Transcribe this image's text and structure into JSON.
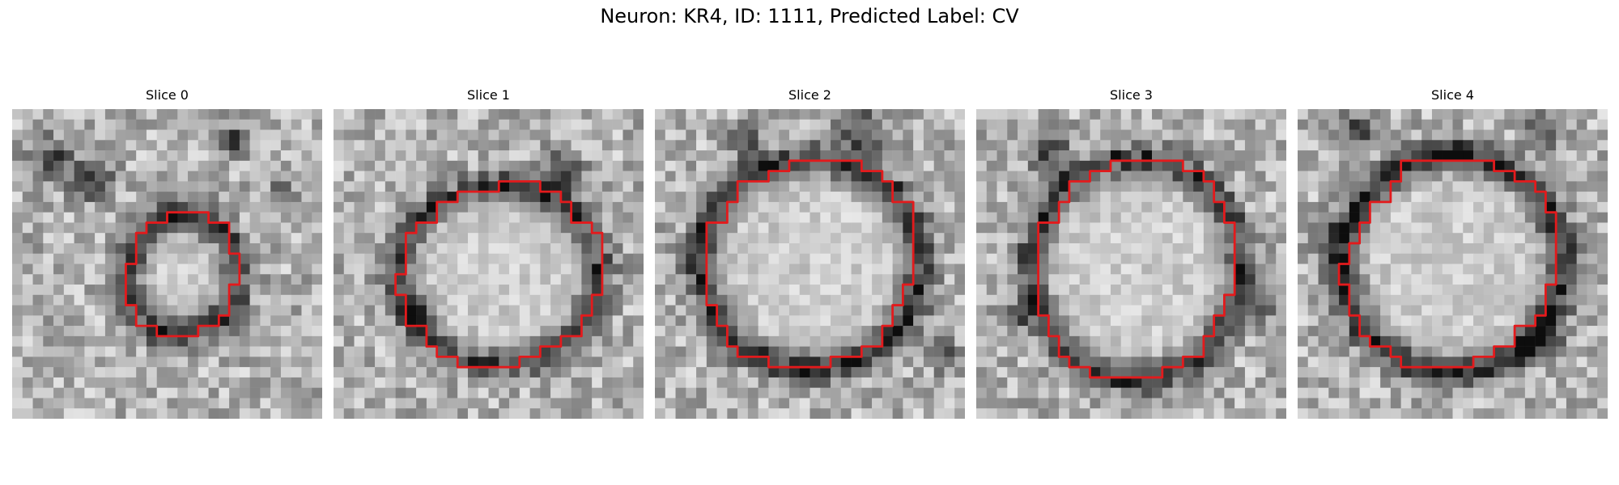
{
  "figure": {
    "title": "Neuron: KR4, ID: 1111, Predicted Label: CV"
  },
  "panels": [
    {
      "title": "Slice 0",
      "contour_color": "#e31a1c"
    },
    {
      "title": "Slice 1",
      "contour_color": "#e31a1c"
    },
    {
      "title": "Slice 2",
      "contour_color": "#e31a1c"
    },
    {
      "title": "Slice 3",
      "contour_color": "#e31a1c"
    },
    {
      "title": "Slice 4",
      "contour_color": "#e31a1c"
    }
  ]
}
